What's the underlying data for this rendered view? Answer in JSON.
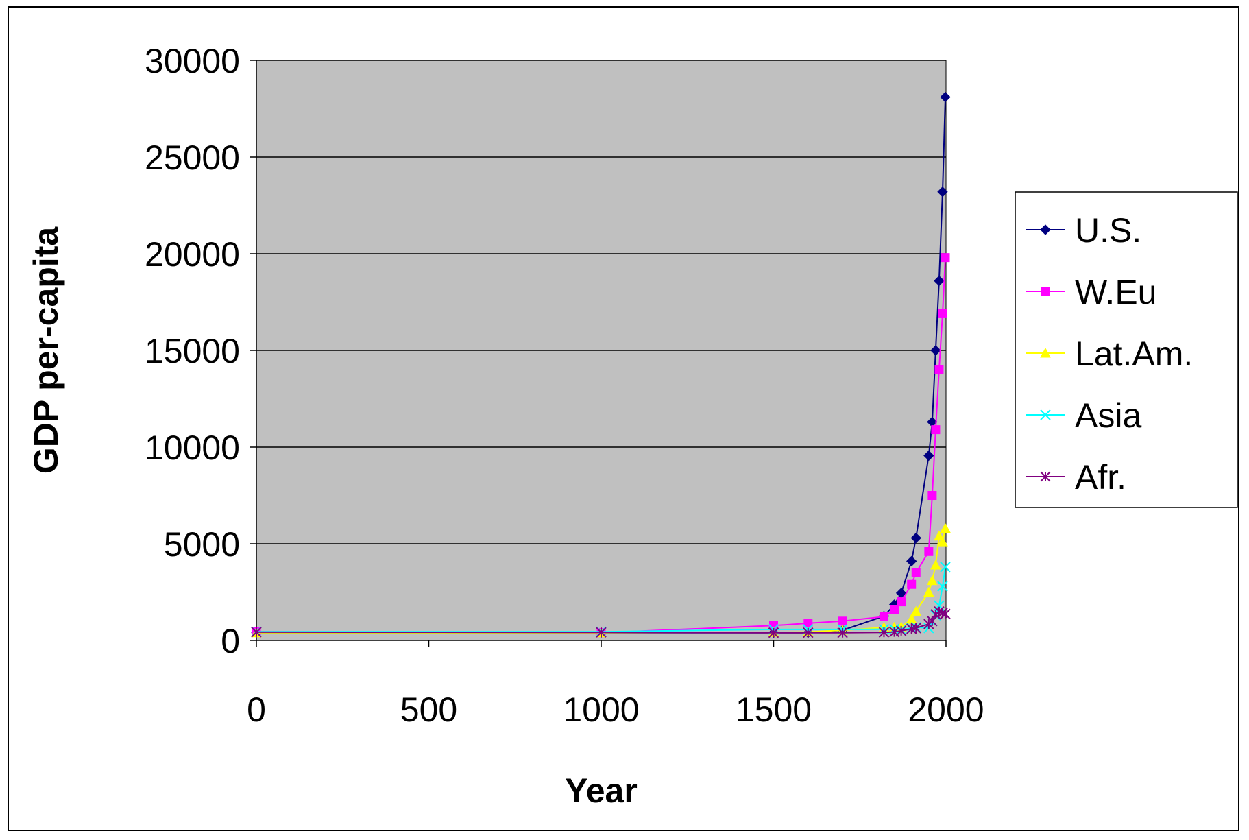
{
  "chart_data": {
    "type": "line",
    "title": "",
    "xlabel": "Year",
    "ylabel": "GDP per-capita",
    "xlim": [
      0,
      2000
    ],
    "ylim": [
      0,
      30000
    ],
    "xticks": [
      "0",
      "500",
      "1000",
      "1500",
      "2000"
    ],
    "yticks": [
      "0",
      "5000",
      "10000",
      "15000",
      "20000",
      "25000",
      "30000"
    ],
    "grid": "horizontal major gridlines",
    "plot_background": "#c0c0c0",
    "legend_position": "right",
    "series": [
      {
        "name": "U.S.",
        "color": "#000080",
        "marker": "diamond",
        "x": [
          0,
          1000,
          1500,
          1600,
          1700,
          1820,
          1850,
          1870,
          1900,
          1913,
          1950,
          1960,
          1970,
          1980,
          1990,
          1998
        ],
        "y": [
          400,
          400,
          400,
          400,
          530,
          1260,
          1850,
          2450,
          4100,
          5300,
          9560,
          11300,
          15000,
          18600,
          23200,
          28100
        ]
      },
      {
        "name": "W.Eu",
        "color": "#ff00ff",
        "marker": "square",
        "x": [
          0,
          1000,
          1500,
          1600,
          1700,
          1820,
          1850,
          1870,
          1900,
          1913,
          1950,
          1960,
          1970,
          1980,
          1990,
          1998
        ],
        "y": [
          450,
          400,
          770,
          890,
          1000,
          1230,
          1600,
          2000,
          2900,
          3500,
          4600,
          7500,
          10900,
          14000,
          16900,
          19800
        ]
      },
      {
        "name": "Lat.Am.",
        "color": "#ffff00",
        "marker": "triangle",
        "x": [
          0,
          1000,
          1500,
          1600,
          1700,
          1820,
          1850,
          1870,
          1900,
          1913,
          1950,
          1960,
          1970,
          1980,
          1990,
          1998
        ],
        "y": [
          400,
          400,
          420,
          440,
          530,
          670,
          680,
          700,
          1100,
          1500,
          2500,
          3100,
          3900,
          5400,
          5100,
          5800
        ]
      },
      {
        "name": "Asia",
        "color": "#00ffff",
        "marker": "x",
        "x": [
          0,
          1000,
          1500,
          1600,
          1700,
          1820,
          1850,
          1870,
          1900,
          1913,
          1950,
          1960,
          1970,
          1980,
          1990,
          1998
        ],
        "y": [
          450,
          450,
          570,
          570,
          570,
          580,
          580,
          550,
          640,
          680,
          640,
          1000,
          1300,
          1800,
          2800,
          3800
        ]
      },
      {
        "name": "Afr.",
        "color": "#800080",
        "marker": "star",
        "x": [
          0,
          1000,
          1500,
          1600,
          1700,
          1820,
          1850,
          1870,
          1900,
          1913,
          1950,
          1960,
          1970,
          1980,
          1990,
          1998
        ],
        "y": [
          430,
          420,
          400,
          400,
          400,
          420,
          440,
          500,
          600,
          640,
          850,
          1000,
          1350,
          1500,
          1430,
          1370
        ]
      }
    ]
  }
}
